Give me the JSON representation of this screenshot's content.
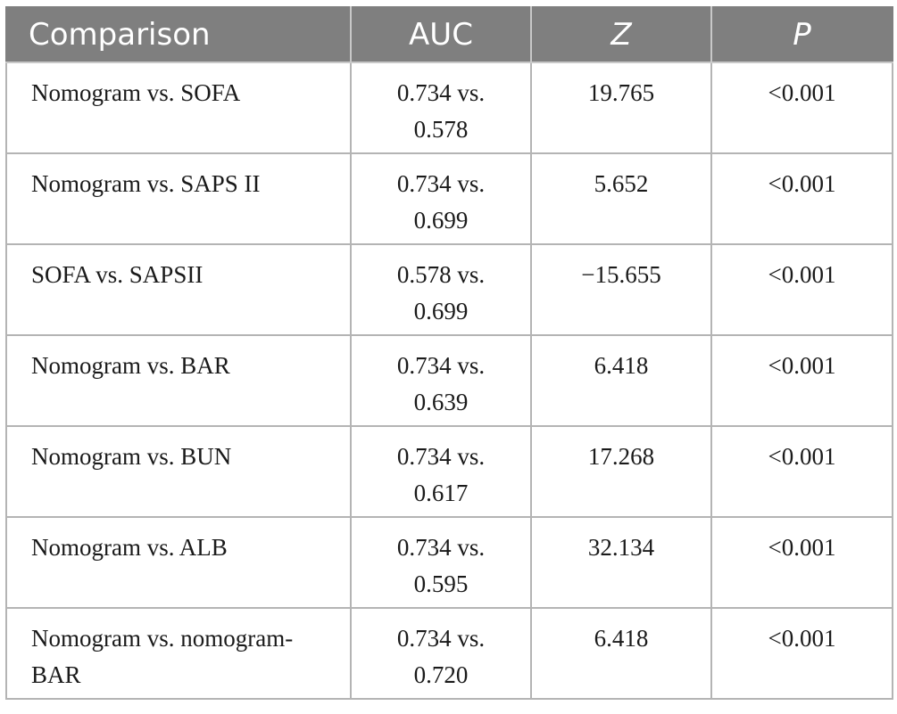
{
  "table": {
    "headers": {
      "comparison": "Comparison",
      "auc": "AUC",
      "z": "Z",
      "p": "P"
    },
    "rows": [
      {
        "comparison": "Nomogram vs. SOFA",
        "auc": "0.734 vs. 0.578",
        "z": "19.765",
        "p": "<0.001"
      },
      {
        "comparison": "Nomogram vs. SAPS II",
        "auc": "0.734 vs. 0.699",
        "z": "5.652",
        "p": "<0.001"
      },
      {
        "comparison": "SOFA vs. SAPSII",
        "auc": "0.578 vs. 0.699",
        "z": "−15.655",
        "p": "<0.001"
      },
      {
        "comparison": "Nomogram vs. BAR",
        "auc": "0.734 vs. 0.639",
        "z": "6.418",
        "p": "<0.001"
      },
      {
        "comparison": "Nomogram vs. BUN",
        "auc": "0.734 vs. 0.617",
        "z": "17.268",
        "p": "<0.001"
      },
      {
        "comparison": "Nomogram vs. ALB",
        "auc": "0.734 vs. 0.595",
        "z": "32.134",
        "p": "<0.001"
      },
      {
        "comparison": "Nomogram vs. nomogram-BAR",
        "auc": "0.734 vs. 0.720",
        "z": "6.418",
        "p": "<0.001"
      }
    ]
  },
  "colors": {
    "header_background": "#7f7f7f",
    "header_text": "#ffffff",
    "grid_lines": "#b4b4b4"
  }
}
